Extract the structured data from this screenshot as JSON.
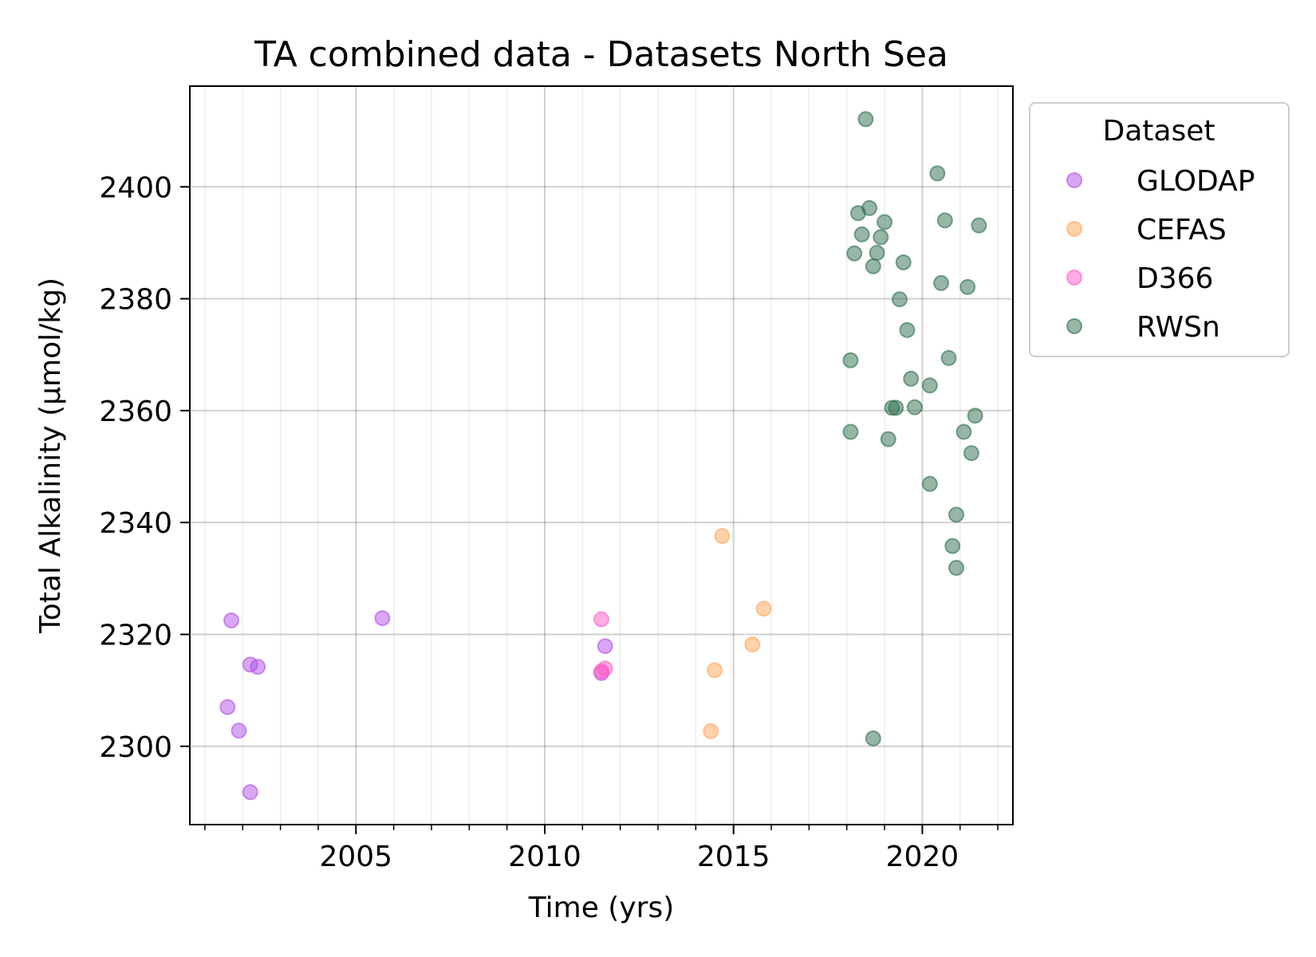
{
  "chart_data": {
    "type": "scatter",
    "title": "TA combined data - Datasets North Sea",
    "xlabel": "Time (yrs)",
    "ylabel": "Total Alkalinity (µmol/kg)",
    "xlim": [
      2000.6,
      2022.4
    ],
    "ylim": [
      2286,
      2418
    ],
    "xticks": [
      2005,
      2010,
      2015,
      2020
    ],
    "yticks": [
      2300,
      2320,
      2340,
      2360,
      2380,
      2400
    ],
    "grid": true,
    "legend_title": "Dataset",
    "legend_position": "outside-top-right",
    "series": [
      {
        "name": "GLODAP",
        "color": "#b150e8",
        "points": [
          [
            2001.7,
            2322.5
          ],
          [
            2001.6,
            2307.0
          ],
          [
            2001.9,
            2302.8
          ],
          [
            2002.2,
            2314.6
          ],
          [
            2002.4,
            2314.2
          ],
          [
            2002.2,
            2291.8
          ],
          [
            2005.7,
            2322.9
          ],
          [
            2011.6,
            2317.9
          ],
          [
            2011.5,
            2313.1
          ]
        ]
      },
      {
        "name": "CEFAS",
        "color": "#ffa55a",
        "points": [
          [
            2014.7,
            2337.6
          ],
          [
            2014.5,
            2313.6
          ],
          [
            2014.4,
            2302.7
          ],
          [
            2015.5,
            2318.2
          ],
          [
            2015.8,
            2324.6
          ]
        ]
      },
      {
        "name": "D366",
        "color": "#ff5cc6",
        "points": [
          [
            2011.5,
            2322.7
          ],
          [
            2011.6,
            2313.9
          ],
          [
            2011.5,
            2313.4
          ]
        ]
      },
      {
        "name": "RWSn",
        "color": "#2f6e4e",
        "points": [
          [
            2018.5,
            2412.1
          ],
          [
            2020.4,
            2402.4
          ],
          [
            2018.3,
            2395.3
          ],
          [
            2018.6,
            2396.2
          ],
          [
            2019.0,
            2393.7
          ],
          [
            2018.4,
            2391.5
          ],
          [
            2018.9,
            2391.0
          ],
          [
            2018.8,
            2388.2
          ],
          [
            2018.2,
            2388.1
          ],
          [
            2018.7,
            2385.8
          ],
          [
            2019.5,
            2386.5
          ],
          [
            2020.6,
            2394.0
          ],
          [
            2021.5,
            2393.1
          ],
          [
            2020.5,
            2382.8
          ],
          [
            2021.2,
            2382.1
          ],
          [
            2019.4,
            2379.9
          ],
          [
            2019.6,
            2374.4
          ],
          [
            2018.1,
            2369.0
          ],
          [
            2020.7,
            2369.4
          ],
          [
            2019.7,
            2365.7
          ],
          [
            2020.2,
            2364.5
          ],
          [
            2019.2,
            2360.5
          ],
          [
            2019.3,
            2360.5
          ],
          [
            2019.8,
            2360.6
          ],
          [
            2019.1,
            2354.9
          ],
          [
            2018.1,
            2356.2
          ],
          [
            2021.1,
            2356.2
          ],
          [
            2021.4,
            2359.1
          ],
          [
            2021.3,
            2352.4
          ],
          [
            2020.2,
            2346.9
          ],
          [
            2020.9,
            2341.4
          ],
          [
            2020.8,
            2335.8
          ],
          [
            2020.9,
            2331.9
          ],
          [
            2018.7,
            2301.4
          ]
        ]
      }
    ]
  }
}
